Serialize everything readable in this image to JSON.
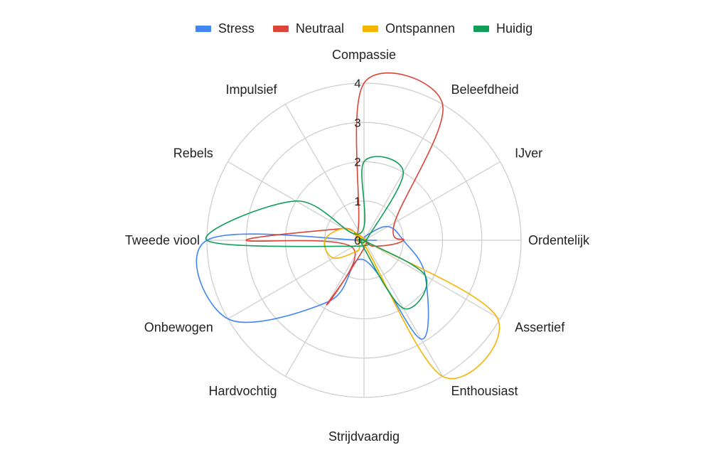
{
  "chart_data": {
    "type": "radar",
    "categories": [
      "Compassie",
      "Beleefdheid",
      "IJver",
      "Ordentelijk",
      "Assertief",
      "Enthousiast",
      "Strijdvaardig",
      "Hardvochtig",
      "Onbewogen",
      "Tweede viool",
      "Rebels",
      "Impulsief"
    ],
    "radial_ticks": [
      "0",
      "1",
      "2",
      "3",
      "4"
    ],
    "rmax": 4,
    "legend_position": "top",
    "series": [
      {
        "name": "Stress",
        "color": "#4285F4",
        "values": [
          0,
          0.15,
          0.7,
          1.0,
          1.8,
          2.9,
          0.5,
          1.8,
          4.0,
          4.0,
          0,
          0
        ]
      },
      {
        "name": "Neutraal",
        "color": "#DB4437",
        "values": [
          4.0,
          4.0,
          0.9,
          1.0,
          0.3,
          0,
          0.2,
          1.9,
          0.35,
          3.0,
          0.6,
          0.3
        ]
      },
      {
        "name": "Ontspannen",
        "color": "#F4B400",
        "values": [
          0,
          0,
          0.05,
          0,
          3.9,
          4.0,
          0.1,
          0.3,
          0.9,
          1.0,
          0.6,
          0.1
        ]
      },
      {
        "name": "Huidig",
        "color": "#0F9D58",
        "values": [
          2.0,
          2.0,
          0.1,
          0,
          1.8,
          2.0,
          0.2,
          0,
          0.3,
          4.0,
          2.0,
          0.2
        ]
      }
    ]
  }
}
